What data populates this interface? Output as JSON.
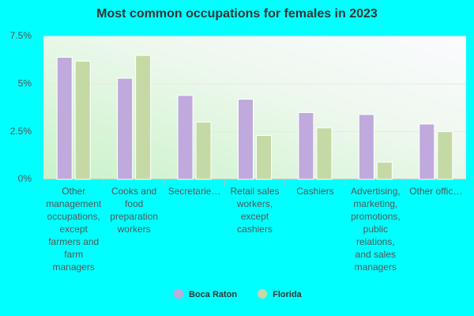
{
  "chart_data": {
    "type": "bar",
    "title": "Most common occupations for females in 2023",
    "categories": [
      "Other management occupations, except farmers and farm managers",
      "Cooks and food preparation workers",
      "Secretarie…",
      "Retail sales workers, except cashiers",
      "Cashiers",
      "Advertising, marketing, promotions, public relations, and sales managers",
      "Other offic…"
    ],
    "series": [
      {
        "name": "Boca Raton",
        "color": "#c0a9dc",
        "values": [
          6.4,
          5.3,
          4.4,
          4.2,
          3.5,
          3.4,
          2.9
        ]
      },
      {
        "name": "Florida",
        "color": "#c5d9a5",
        "values": [
          6.2,
          6.5,
          3.0,
          2.3,
          2.7,
          0.9,
          2.5
        ]
      }
    ],
    "ylim": [
      0,
      7.5
    ],
    "yticks": [
      {
        "value": 0,
        "label": "0%"
      },
      {
        "value": 2.5,
        "label": "2.5%"
      },
      {
        "value": 5,
        "label": "5%"
      },
      {
        "value": 7.5,
        "label": "7.5%"
      }
    ],
    "grid": true
  }
}
